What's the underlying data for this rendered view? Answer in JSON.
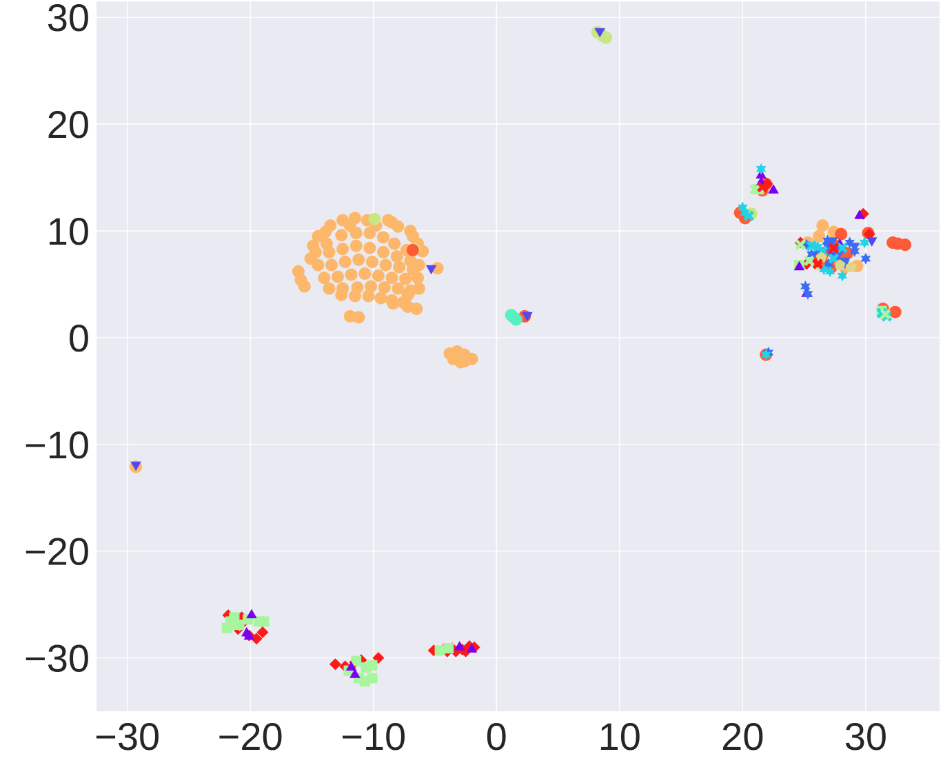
{
  "chart_data": {
    "type": "scatter",
    "title": "",
    "xlabel": "",
    "ylabel": "",
    "xlim": [
      -32.5,
      36
    ],
    "ylim": [
      -35,
      31.5
    ],
    "grid": true,
    "background": "#eaeaf2",
    "x_ticks": [
      -30,
      -20,
      -10,
      0,
      10,
      20,
      30
    ],
    "y_ticks": [
      -30,
      -20,
      -10,
      0,
      10,
      20,
      30
    ],
    "x_tick_labels": [
      "−30",
      "−20",
      "−10",
      "0",
      "10",
      "20",
      "30"
    ],
    "y_tick_labels": [
      "−30",
      "−20",
      "−10",
      "0",
      "10",
      "20",
      "30"
    ],
    "colors": {
      "orange": "#fdb76a",
      "red": "#ff1a1a",
      "tomato": "#ff5a36",
      "green": "#a8f5a0",
      "yellowgreen": "#c8e683",
      "aqua": "#57f0c0",
      "cyan": "#22d3e6",
      "blue": "#3b6cf5",
      "purple": "#7a00f0",
      "indigo": "#5548ee",
      "khaki": "#ddd889"
    },
    "series": [
      {
        "marker": "circle",
        "color": "orange",
        "points": [
          [
            -14.5,
            9.5
          ],
          [
            -13.5,
            10.5
          ],
          [
            -12.5,
            11
          ],
          [
            -11.5,
            11.2
          ],
          [
            -10.5,
            11
          ],
          [
            -13.8,
            8.8
          ],
          [
            -12.6,
            9.6
          ],
          [
            -11.4,
            9.8
          ],
          [
            -10.3,
            9.8
          ],
          [
            -9.2,
            9.4
          ],
          [
            -8.3,
            8.8
          ],
          [
            -7.3,
            8.2
          ],
          [
            -14.7,
            8
          ],
          [
            -13.6,
            8
          ],
          [
            -12.5,
            8.3
          ],
          [
            -11.4,
            8.6
          ],
          [
            -10.3,
            8.4
          ],
          [
            -9.2,
            8
          ],
          [
            -8.1,
            7.6
          ],
          [
            -7,
            7.2
          ],
          [
            -14.5,
            6.8
          ],
          [
            -13.4,
            6.8
          ],
          [
            -12.3,
            7.1
          ],
          [
            -11.2,
            7.3
          ],
          [
            -10.1,
            7.1
          ],
          [
            -9,
            6.8
          ],
          [
            -7.9,
            6.6
          ],
          [
            -6.8,
            6.4
          ],
          [
            -14,
            5.6
          ],
          [
            -12.9,
            5.7
          ],
          [
            -11.8,
            5.9
          ],
          [
            -10.7,
            6
          ],
          [
            -9.6,
            5.8
          ],
          [
            -8.5,
            5.6
          ],
          [
            -7.4,
            5.5
          ],
          [
            -6.4,
            5.6
          ],
          [
            -13.6,
            4.6
          ],
          [
            -12.5,
            4.6
          ],
          [
            -11.3,
            4.7
          ],
          [
            -10.2,
            4.8
          ],
          [
            -9.1,
            4.7
          ],
          [
            -8,
            4.6
          ],
          [
            -7,
            4.4
          ],
          [
            -12.6,
            4
          ],
          [
            -11.5,
            3.9
          ],
          [
            -10.4,
            3.9
          ],
          [
            -9.4,
            3.7
          ],
          [
            -8.5,
            3.5
          ],
          [
            -7.6,
            3.3
          ],
          [
            -7.2,
            4
          ],
          [
            -6.3,
            4.6
          ],
          [
            -6.3,
            6.8
          ],
          [
            -6,
            8.1
          ],
          [
            -7,
            10
          ],
          [
            -8.5,
            10.8
          ],
          [
            -9.8,
            10.5
          ],
          [
            -8.8,
            11
          ],
          [
            -8,
            10.4
          ],
          [
            -16.1,
            6.2
          ],
          [
            -15.9,
            5.4
          ],
          [
            -15.6,
            4.8
          ],
          [
            -11.9,
            2
          ],
          [
            -11.2,
            1.9
          ],
          [
            -7.2,
            2.9
          ],
          [
            -6.5,
            2.7
          ],
          [
            -4.8,
            6.5
          ],
          [
            -8.4,
            3.2
          ],
          [
            -14.9,
            8.6
          ],
          [
            -15.1,
            7.4
          ],
          [
            -13.9,
            9.9
          ],
          [
            -11.9,
            10.5
          ],
          [
            -6.4,
            8.8
          ],
          [
            -6.8,
            9.5
          ],
          [
            -3.8,
            -1.5
          ],
          [
            -3.2,
            -1.8
          ],
          [
            -2.6,
            -2.2
          ],
          [
            -2,
            -2
          ],
          [
            -3.2,
            -1.3
          ],
          [
            -2.6,
            -1.6
          ],
          [
            -3.5,
            -2
          ],
          [
            -2.9,
            -2.3
          ],
          [
            26.5,
            10.5
          ],
          [
            27.4,
            9.9
          ],
          [
            26.2,
            9.5
          ],
          [
            28.3,
            6.6
          ],
          [
            29.3,
            6.7
          ],
          [
            25.3,
            8.9
          ],
          [
            -29.3,
            -12.1
          ]
        ]
      },
      {
        "marker": "circle",
        "color": "yellowgreen",
        "points": [
          [
            8.6,
            28.3
          ],
          [
            8.9,
            28.1
          ],
          [
            8.2,
            28.6
          ],
          [
            -9.9,
            11.1
          ],
          [
            -6.7,
            8.3
          ],
          [
            31.4,
            2.3
          ],
          [
            20.7,
            11.6
          ],
          [
            26.2,
            6.9
          ]
        ]
      },
      {
        "marker": "circle",
        "color": "tomato",
        "points": [
          [
            -6.8,
            8.2
          ],
          [
            2.3,
            2
          ],
          [
            19.8,
            11.7
          ],
          [
            20.2,
            11.2
          ],
          [
            21.6,
            13.8
          ],
          [
            21.9,
            14.4
          ],
          [
            26.5,
            7.8
          ],
          [
            27.2,
            8.2
          ],
          [
            27.9,
            7.3
          ],
          [
            26.8,
            6.8
          ],
          [
            28,
            9.7
          ],
          [
            26.3,
            7.3
          ],
          [
            27.6,
            8.6
          ],
          [
            28.5,
            7.9
          ],
          [
            32.2,
            8.9
          ],
          [
            32.6,
            8.8
          ],
          [
            33.2,
            8.7
          ],
          [
            32.4,
            2.4
          ],
          [
            31.4,
            2.7
          ],
          [
            21.9,
            -1.6
          ],
          [
            30.2,
            9.8
          ],
          [
            27.2,
            6.6
          ]
        ]
      },
      {
        "marker": "circle",
        "color": "aqua",
        "points": [
          [
            1.4,
            1.9
          ],
          [
            1.6,
            1.7
          ],
          [
            1.2,
            2.1
          ]
        ]
      },
      {
        "marker": "diamond",
        "color": "red",
        "points": [
          [
            -21.5,
            -26.6
          ],
          [
            -21,
            -27.3
          ],
          [
            -20.5,
            -26.6
          ],
          [
            -20.1,
            -27.9
          ],
          [
            -19.5,
            -28.2
          ],
          [
            -19,
            -27.6
          ],
          [
            -21.8,
            -26
          ],
          [
            -20.7,
            -26.2
          ],
          [
            -13.1,
            -30.6
          ],
          [
            -12.3,
            -30.8
          ],
          [
            -11,
            -30.2
          ],
          [
            -9.6,
            -30
          ],
          [
            -11.5,
            -30.4
          ],
          [
            -5.1,
            -29.3
          ],
          [
            -4.3,
            -29.2
          ],
          [
            -3.6,
            -29.1
          ],
          [
            -2.8,
            -29.2
          ],
          [
            -2.2,
            -28.9
          ],
          [
            -3.3,
            -29.4
          ],
          [
            -2.5,
            -29.4
          ],
          [
            -1.8,
            -29
          ],
          [
            -4,
            -29.4
          ],
          [
            24.7,
            8.9
          ],
          [
            25.2,
            6.9
          ],
          [
            26.1,
            7.1
          ],
          [
            22,
            14.4
          ],
          [
            29.8,
            11.6
          ],
          [
            30.3,
            9.7
          ]
        ]
      },
      {
        "marker": "square",
        "color": "green",
        "points": [
          [
            -21.9,
            -27.2
          ],
          [
            -21.3,
            -26.2
          ],
          [
            -20.9,
            -26.9
          ],
          [
            -20.2,
            -26.4
          ],
          [
            -19.3,
            -26.6
          ],
          [
            -18.9,
            -26.6
          ],
          [
            -21.6,
            -26.6
          ],
          [
            -11.4,
            -30.3
          ],
          [
            -10.6,
            -30.9
          ],
          [
            -10.1,
            -30.7
          ],
          [
            -11.2,
            -31.9
          ],
          [
            -10.7,
            -32.2
          ],
          [
            -10.1,
            -31.9
          ],
          [
            -12,
            -31.2
          ],
          [
            -4.6,
            -29.3
          ],
          [
            -3.9,
            -29.1
          ],
          [
            24.6,
            6.8
          ],
          [
            31.3,
            2.5
          ],
          [
            21.3,
            13.9
          ]
        ]
      },
      {
        "marker": "triangle-up",
        "color": "purple",
        "points": [
          [
            -20.1,
            -28
          ],
          [
            -19.9,
            -26
          ],
          [
            -20.3,
            -27.7
          ],
          [
            -11.5,
            -31.6
          ],
          [
            -11.8,
            -30.9
          ],
          [
            -2,
            -29.2
          ],
          [
            -3,
            -29
          ],
          [
            21.5,
            15.2
          ],
          [
            21.5,
            14.5
          ],
          [
            22.5,
            13.8
          ],
          [
            25.2,
            4.1
          ],
          [
            27.9,
            8.7
          ],
          [
            24.6,
            6.6
          ],
          [
            29.5,
            11.4
          ]
        ]
      },
      {
        "marker": "triangle-down",
        "color": "indigo",
        "points": [
          [
            -29.3,
            -11.9
          ],
          [
            8.4,
            28.7
          ],
          [
            2.5,
            2.1
          ],
          [
            -5.3,
            6.5
          ],
          [
            25.7,
            7.8
          ],
          [
            27.3,
            7.7
          ],
          [
            30.5,
            9.1
          ]
        ]
      },
      {
        "marker": "triangle-down",
        "color": "blue",
        "points": [
          [
            26.9,
            8.6
          ],
          [
            27.3,
            9.1
          ],
          [
            28.3,
            7.2
          ],
          [
            29.1,
            8.6
          ],
          [
            27.8,
            7.9
          ]
        ]
      },
      {
        "marker": "star",
        "color": "blue",
        "points": [
          [
            25.2,
            8.7
          ],
          [
            25.6,
            7.8
          ],
          [
            26.9,
            9.1
          ],
          [
            27.8,
            8.5
          ],
          [
            28.7,
            8.9
          ],
          [
            29.1,
            8.1
          ],
          [
            28.3,
            7
          ],
          [
            27,
            6.9
          ],
          [
            26.2,
            8.2
          ],
          [
            30,
            7.4
          ],
          [
            25.1,
            4.8
          ],
          [
            25.3,
            4.1
          ],
          [
            22.1,
            -1.4
          ],
          [
            27.5,
            7.6
          ],
          [
            28,
            8.2
          ]
        ]
      },
      {
        "marker": "star",
        "color": "cyan",
        "points": [
          [
            21.5,
            15.8
          ],
          [
            20.2,
            11.7
          ],
          [
            26.6,
            6.4
          ],
          [
            27.1,
            6.2
          ],
          [
            28.1,
            5.8
          ],
          [
            29.9,
            8.9
          ],
          [
            21.9,
            -1.6
          ],
          [
            20,
            12.2
          ],
          [
            26.1,
            8.5
          ]
        ]
      },
      {
        "marker": "x",
        "color": "cyan",
        "points": [
          [
            20.5,
            11.4
          ],
          [
            26.5,
            8.1
          ],
          [
            27.4,
            7.4
          ],
          [
            28.1,
            8.4
          ],
          [
            31.3,
            2.3
          ],
          [
            31.7,
            2
          ],
          [
            25.6,
            8.6
          ]
        ]
      },
      {
        "marker": "x",
        "color": "green",
        "points": [
          [
            21,
            13.9
          ],
          [
            24.7,
            8.7
          ],
          [
            25.4,
            7.2
          ],
          [
            31.6,
            2.2
          ],
          [
            -21.1,
            -27
          ]
        ]
      },
      {
        "marker": "pentagon",
        "color": "khaki",
        "points": [
          [
            27.9,
            6.8
          ],
          [
            28.8,
            6.6
          ],
          [
            26.4,
            7.5
          ]
        ]
      },
      {
        "marker": "x",
        "color": "red",
        "points": [
          [
            27.4,
            8.4
          ],
          [
            26.1,
            6.9
          ],
          [
            21.6,
            14.1
          ]
        ]
      }
    ]
  }
}
